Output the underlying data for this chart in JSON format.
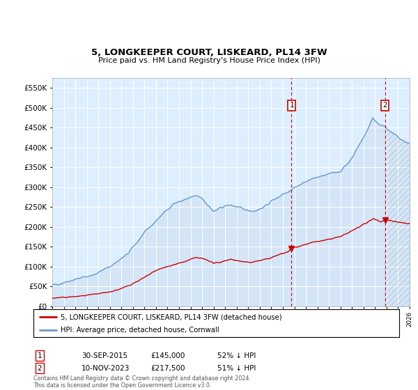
{
  "title": "5, LONGKEEPER COURT, LISKEARD, PL14 3FW",
  "subtitle": "Price paid vs. HM Land Registry's House Price Index (HPI)",
  "legend_line1": "5, LONGKEEPER COURT, LISKEARD, PL14 3FW (detached house)",
  "legend_line2": "HPI: Average price, detached house, Cornwall",
  "footnote": "Contains HM Land Registry data © Crown copyright and database right 2024.\nThis data is licensed under the Open Government Licence v3.0.",
  "sale1_label": "1",
  "sale1_date": "30-SEP-2015",
  "sale1_price": "£145,000",
  "sale1_pct": "52% ↓ HPI",
  "sale2_label": "2",
  "sale2_date": "10-NOV-2023",
  "sale2_price": "£217,500",
  "sale2_pct": "51% ↓ HPI",
  "hpi_color": "#6699cc",
  "hpi_fill_color": "#ccddf0",
  "sale_color": "#cc0000",
  "dashed_color": "#cc0000",
  "background_color": "#ddeeff",
  "ylim": [
    0,
    575000
  ],
  "yticks": [
    0,
    50000,
    100000,
    150000,
    200000,
    250000,
    300000,
    350000,
    400000,
    450000,
    500000,
    550000
  ],
  "sale1_x": 2015.75,
  "sale2_x": 2023.86,
  "sale1_y": 145000,
  "sale2_y": 217500,
  "xlim_start": 1995.0,
  "xlim_end": 2026.0
}
